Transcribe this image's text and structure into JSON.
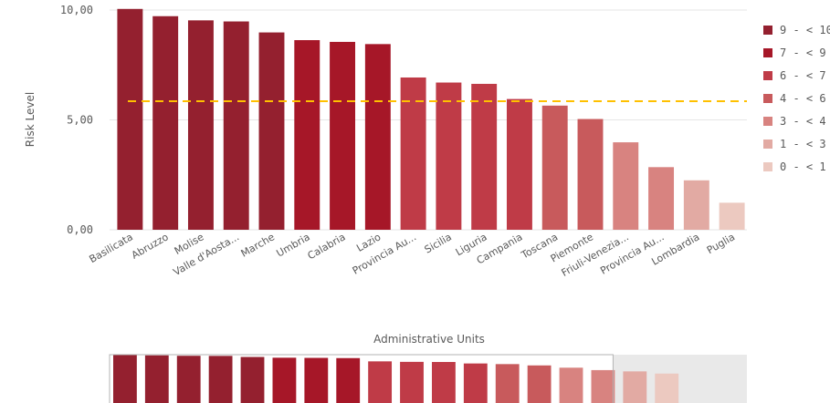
{
  "chart_data": {
    "type": "bar",
    "xlabel": "Administrative Units",
    "ylabel": "Risk Level",
    "ylim": [
      0,
      10
    ],
    "yticks": [
      {
        "value": 0,
        "label": "0,00"
      },
      {
        "value": 5,
        "label": "5,00"
      },
      {
        "value": 10,
        "label": "10,00"
      }
    ],
    "categories": [
      "Basilicata",
      "Abruzzo",
      "Molise",
      "Valle d'Aosta...",
      "Marche",
      "Umbria",
      "Calabria",
      "Lazio",
      "Provincia Au...",
      "Sicilia",
      "Liguria",
      "Campania",
      "Toscana",
      "Piemonte",
      "Friuli-Venezia...",
      "Provincia Au...",
      "Lombardia",
      "Puglia"
    ],
    "values": [
      10.05,
      9.72,
      9.53,
      9.48,
      8.98,
      8.63,
      8.55,
      8.45,
      6.93,
      6.7,
      6.64,
      5.95,
      5.65,
      5.04,
      3.98,
      2.85,
      2.25,
      1.23
    ],
    "bar_colors": [
      "#94202f",
      "#94202f",
      "#94202f",
      "#94202f",
      "#94202f",
      "#a61728",
      "#a61728",
      "#a61728",
      "#bf3b47",
      "#bf3b47",
      "#bf3b47",
      "#bf3b47",
      "#c85a5c",
      "#c85a5c",
      "#d88380",
      "#d88380",
      "#e2aaa3",
      "#ecc9c0"
    ],
    "reference_line": {
      "value": 5.85,
      "color": "#ffc000",
      "style": "dashed"
    },
    "legend": {
      "placement": "right",
      "entries": [
        {
          "label": "9 - < 10",
          "color": "#94202f"
        },
        {
          "label": "7 - < 9",
          "color": "#a61728"
        },
        {
          "label": "6 - < 7",
          "color": "#bf3b47"
        },
        {
          "label": "4 - < 6",
          "color": "#c85a5c"
        },
        {
          "label": "3 - < 4",
          "color": "#d88380"
        },
        {
          "label": "1 - < 3",
          "color": "#e2aaa3"
        },
        {
          "label": "0 - < 1",
          "color": "#ecc9c0"
        }
      ]
    },
    "grid": true,
    "minimap": {
      "visible_fraction": 0.79
    }
  }
}
